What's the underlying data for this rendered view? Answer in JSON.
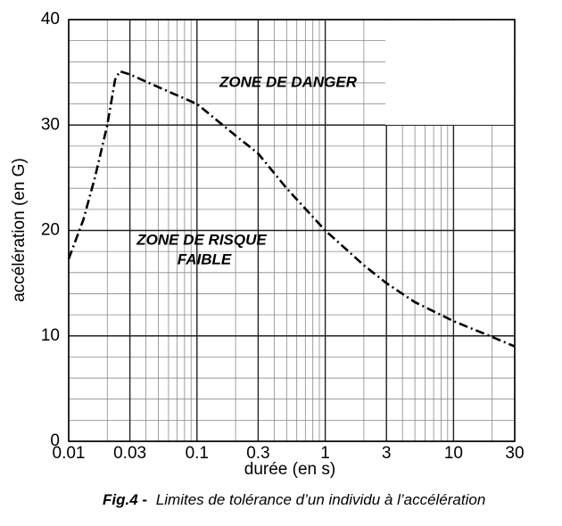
{
  "chart_data": {
    "type": "line",
    "x_label": "durée (en s)",
    "y_label": "accélération (en G)",
    "x": [
      0.01,
      0.013,
      0.016,
      0.02,
      0.023,
      0.025,
      0.03,
      0.05,
      0.1,
      0.2,
      0.3,
      0.5,
      1,
      2,
      3,
      5,
      10,
      20,
      30
    ],
    "values": [
      17.3,
      21,
      25,
      30,
      34.3,
      35.1,
      34.8,
      33.6,
      32,
      29,
      27.3,
      24,
      20,
      16.7,
      15,
      13.2,
      11.4,
      9.9,
      9
    ],
    "color": "#000000",
    "xscale": "log",
    "xlim": [
      0.01,
      30
    ],
    "xticks": [
      0.01,
      0.03,
      0.1,
      0.3,
      1,
      3,
      10,
      30
    ],
    "ylim": [
      0,
      40
    ],
    "yticks": [
      0,
      10,
      20,
      30,
      40
    ],
    "grid": true,
    "minor_grid": true,
    "annotations": [
      "ZONE DE DANGER",
      "ZONE DE RISQUE",
      "FAIBLE"
    ],
    "caption_label": "Fig.4 -",
    "caption": "Limites de tolérance d’un individu à l’accélération"
  }
}
